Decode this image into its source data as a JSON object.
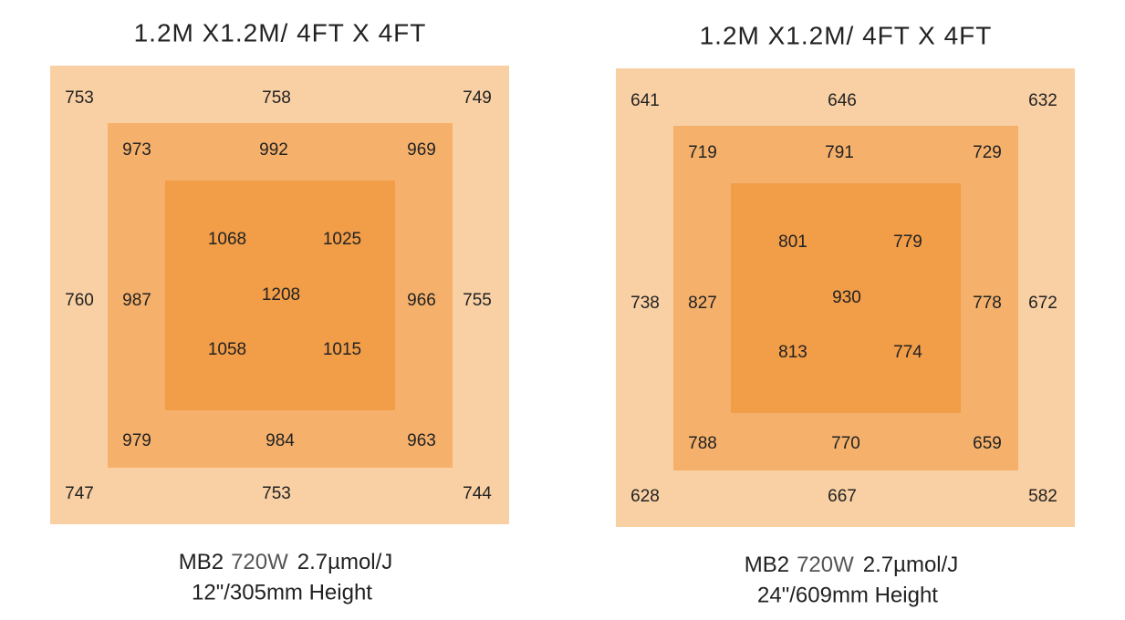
{
  "panels": [
    {
      "title": "1.2M X1.2M/ 4FT X 4FT",
      "outer": [
        753,
        758,
        749,
        760,
        755,
        747,
        753,
        744
      ],
      "middle": [
        973,
        992,
        969,
        987,
        966,
        979,
        984,
        963
      ],
      "inner": [
        1068,
        1025,
        1058,
        1015
      ],
      "center": 1208,
      "caption": {
        "model": "MB2",
        "power": "720W",
        "efficiency": "2.7µmol/J",
        "height": "12\"/305mm Height"
      }
    },
    {
      "title": "1.2M X1.2M/ 4FT X 4FT",
      "outer": [
        641,
        646,
        632,
        738,
        672,
        628,
        667,
        582
      ],
      "middle": [
        719,
        791,
        729,
        827,
        778,
        788,
        770,
        659
      ],
      "inner": [
        801,
        779,
        813,
        774
      ],
      "center": 930,
      "caption": {
        "model": "MB2",
        "power": "720W",
        "efficiency": "2.7µmol/J",
        "height": "24\"/609mm Height"
      }
    }
  ]
}
